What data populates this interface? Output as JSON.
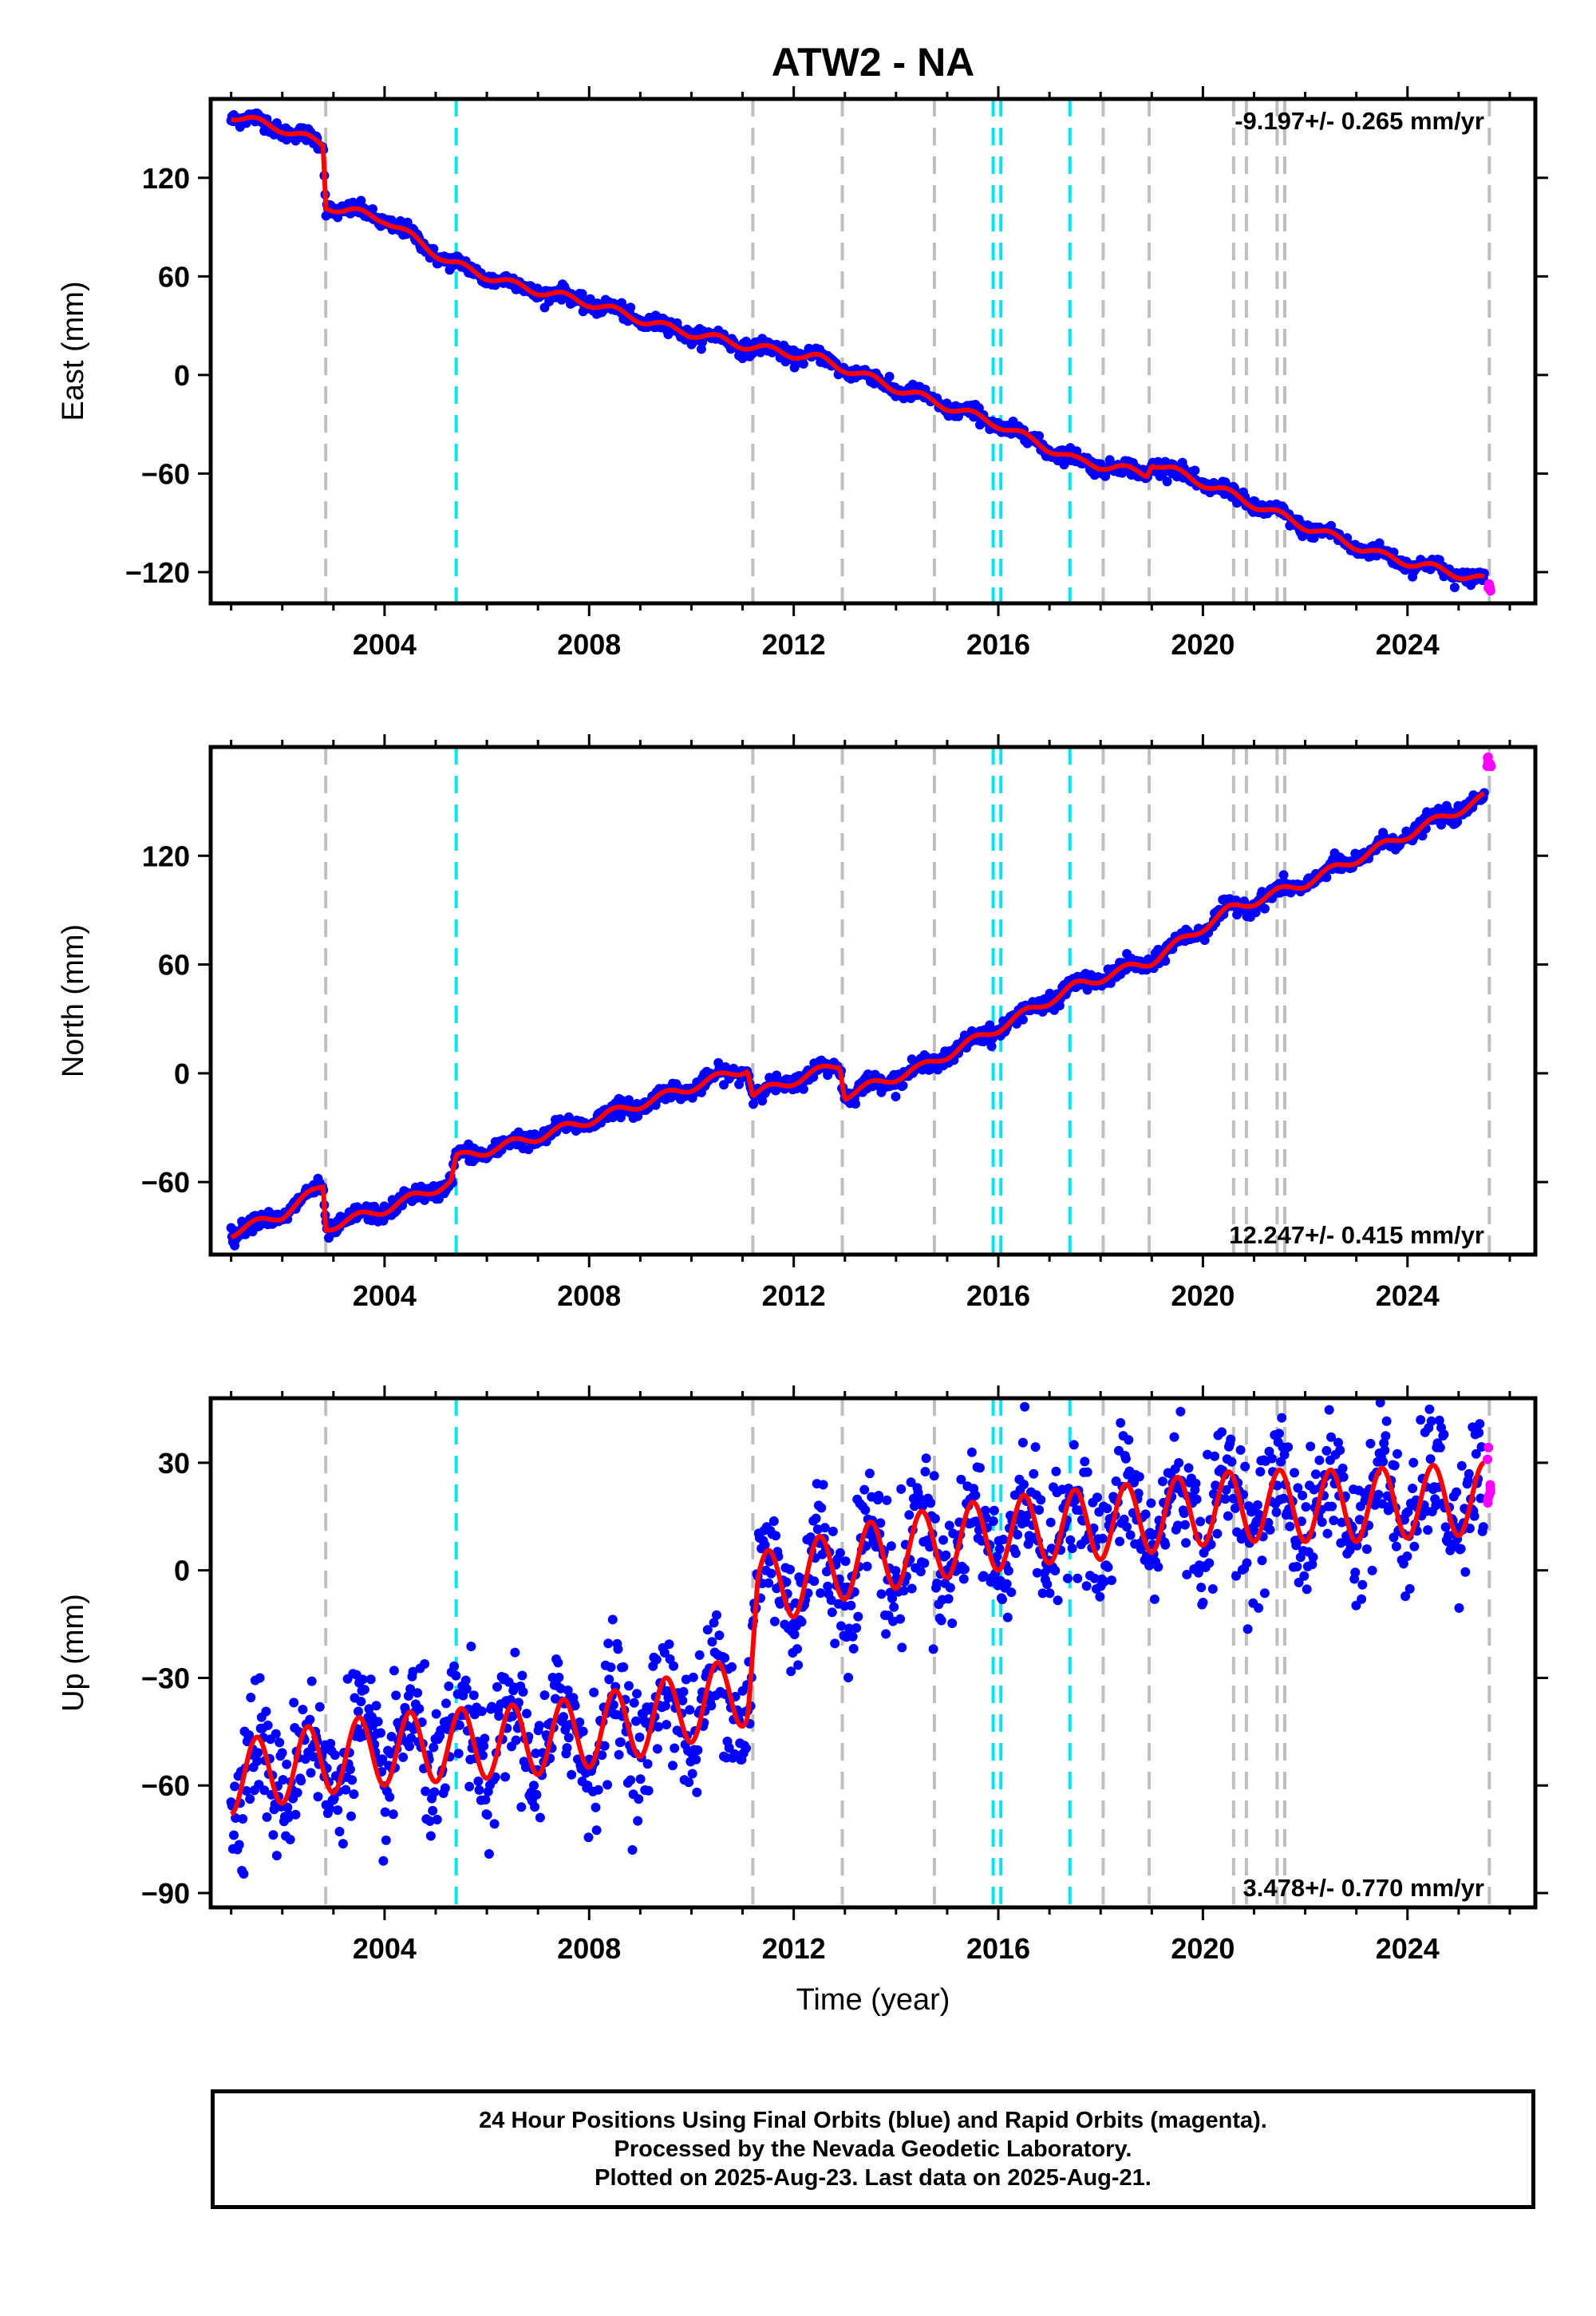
{
  "title": "ATW2 - NA",
  "xlabel": "Time (year)",
  "footer": {
    "line1": "24 Hour Positions Using Final Orbits (blue) and Rapid Orbits (magenta).",
    "line2": "Processed by the Nevada Geodetic Laboratory.",
    "line3": "Plotted on 2025-Aug-23. Last data on 2025-Aug-21."
  },
  "colors": {
    "final_orbits": "#0000ff",
    "rapid_orbits": "#ff00ff",
    "model": "#ff0000",
    "equipment_change": "#bebebe",
    "earthquake": "#00e5ee"
  },
  "chart_data": [
    {
      "type": "scatter",
      "ylabel": "East (mm)",
      "rate": "-9.197+/- 0.265 mm/yr",
      "rate_position": "top-right",
      "xlim": [
        2000.6,
        2026.5
      ],
      "ylim": [
        -139,
        168
      ],
      "xticks": [
        2004,
        2008,
        2012,
        2016,
        2020,
        2024
      ],
      "yticks": [
        -120,
        -60,
        0,
        60,
        120
      ],
      "grid": false,
      "series": [
        {
          "name": "Final Orbits",
          "x": [
            2001.0,
            2002.0,
            2002.8,
            2002.85,
            2004.0,
            2005.3,
            2006.5,
            2008.0,
            2009.5,
            2011.2,
            2012.5,
            2014.0,
            2016.0,
            2017.5,
            2018.9,
            2019.0,
            2020.5,
            2022.0,
            2023.5,
            2025.5
          ],
          "y": [
            158,
            150,
            140,
            103,
            95,
            68,
            55,
            44,
            29,
            17,
            10,
            -8,
            -30,
            -52,
            -60,
            -53,
            -72,
            -92,
            -110,
            -125
          ]
        },
        {
          "name": "Rapid Orbits",
          "x": [
            2025.6
          ],
          "y": [
            -128
          ]
        }
      ],
      "equipment_changes": [
        2002.85,
        2011.2,
        2012.95,
        2014.75,
        2018.05,
        2018.95,
        2020.6,
        2020.85,
        2021.45,
        2021.6,
        2025.6
      ],
      "earthquakes": [
        2005.4,
        2015.9,
        2016.05,
        2017.4
      ]
    },
    {
      "type": "scatter",
      "ylabel": "North (mm)",
      "rate": "12.247+/- 0.415 mm/yr",
      "rate_position": "bottom-right",
      "xlim": [
        2000.6,
        2026.5
      ],
      "ylim": [
        -100,
        180
      ],
      "xticks": [
        2004,
        2008,
        2012,
        2016,
        2020,
        2024
      ],
      "yticks": [
        -60,
        0,
        60,
        120
      ],
      "grid": false,
      "series": [
        {
          "name": "Final Orbits",
          "x": [
            2001.0,
            2002.0,
            2002.8,
            2002.85,
            2004.0,
            2005.3,
            2005.4,
            2007.0,
            2009.0,
            2011.1,
            2011.2,
            2012.9,
            2013.0,
            2014.5,
            2016.0,
            2017.5,
            2019.0,
            2020.5,
            2022.0,
            2023.5,
            2025.5
          ],
          "y": [
            -88,
            -78,
            -62,
            -85,
            -75,
            -60,
            -47,
            -35,
            -17,
            3,
            -12,
            5,
            -12,
            3,
            25,
            48,
            62,
            90,
            105,
            125,
            152
          ]
        },
        {
          "name": "Rapid Orbits",
          "x": [
            2025.6
          ],
          "y": [
            172
          ]
        }
      ],
      "equipment_changes": [
        2002.85,
        2011.2,
        2012.95,
        2014.75,
        2018.05,
        2018.95,
        2020.6,
        2020.85,
        2021.45,
        2021.6,
        2025.6
      ],
      "earthquakes": [
        2005.4,
        2015.9,
        2016.05,
        2017.4
      ]
    },
    {
      "type": "scatter",
      "ylabel": "Up (mm)",
      "rate": "3.478+/- 0.770 mm/yr",
      "rate_position": "bottom-right",
      "xlim": [
        2000.6,
        2026.5
      ],
      "ylim": [
        -94,
        48
      ],
      "xticks": [
        2004,
        2008,
        2012,
        2016,
        2020,
        2024
      ],
      "yticks": [
        -90,
        -60,
        -30,
        0,
        30
      ],
      "grid": false,
      "series": [
        {
          "name": "Final Orbits",
          "x": [
            2001.0,
            2002.0,
            2003.0,
            2004.0,
            2005.0,
            2006.0,
            2007.0,
            2008.0,
            2009.0,
            2010.0,
            2011.1,
            2011.3,
            2012.0,
            2013.0,
            2014.0,
            2015.0,
            2016.0,
            2017.0,
            2018.0,
            2019.0,
            2020.0,
            2021.0,
            2022.0,
            2023.0,
            2024.0,
            2025.5
          ],
          "y": [
            -58,
            -55,
            -52,
            -50,
            -49,
            -48,
            -47,
            -45,
            -42,
            -38,
            -33,
            -5,
            -3,
            2,
            5,
            8,
            10,
            12,
            13,
            15,
            17,
            18,
            18,
            18,
            19,
            20
          ]
        },
        {
          "name": "Rapid Orbits",
          "x": [
            2025.6
          ],
          "y": [
            20
          ]
        }
      ],
      "equipment_changes": [
        2002.85,
        2011.2,
        2012.95,
        2014.75,
        2018.05,
        2018.95,
        2020.6,
        2020.85,
        2021.45,
        2021.6,
        2025.6
      ],
      "earthquakes": [
        2005.4,
        2015.9,
        2016.05,
        2017.4
      ]
    }
  ]
}
